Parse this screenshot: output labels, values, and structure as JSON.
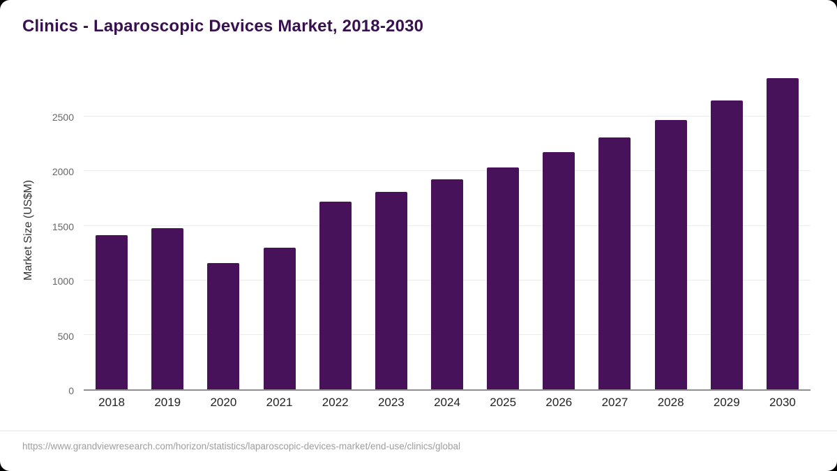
{
  "title": "Clinics - Laparoscopic Devices Market, 2018-2030",
  "source": "https://www.grandviewresearch.com/horizon/statistics/laparoscopic-devices-market/end-use/clinics/global",
  "colors": {
    "title": "#38104f",
    "bar": "#471259",
    "grid": "#ececec",
    "tick": "#666666",
    "source": "#9e9e9e"
  },
  "chart_data": {
    "type": "bar",
    "title": "Clinics - Laparoscopic Devices Market, 2018-2030",
    "categories": [
      "2018",
      "2019",
      "2020",
      "2021",
      "2022",
      "2023",
      "2024",
      "2025",
      "2026",
      "2027",
      "2028",
      "2029",
      "2030"
    ],
    "values": [
      1415,
      1480,
      1160,
      1300,
      1720,
      1810,
      1925,
      2035,
      2175,
      2310,
      2470,
      2650,
      2855
    ],
    "xlabel": "",
    "ylabel": "Market Size (US$M)",
    "ylim": [
      0,
      2930
    ],
    "yticks": [
      0,
      500,
      1000,
      1500,
      2000,
      2500
    ],
    "bar_color": "#471259",
    "grid": "horizontal",
    "legend": "none"
  }
}
